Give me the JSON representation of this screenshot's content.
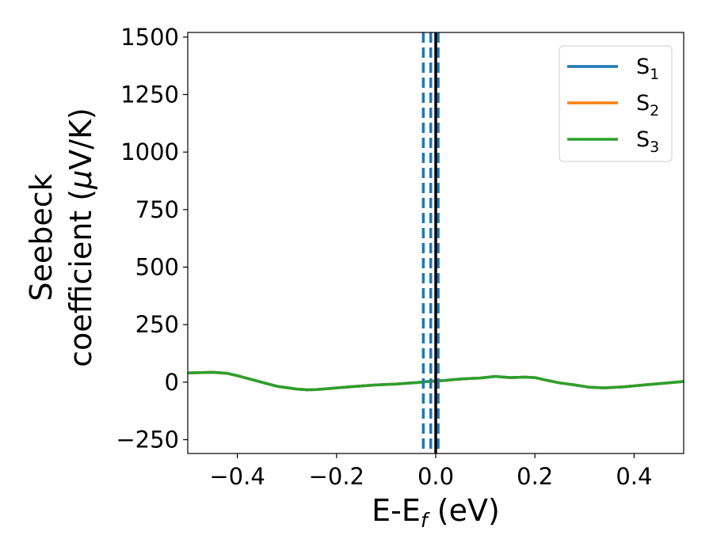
{
  "chart_data": {
    "type": "line",
    "xlabel": {
      "base": "E-E",
      "sub": "f",
      "unit": " (eV)"
    },
    "ylabel": {
      "line1": "Seebeck",
      "line2_prefix": "coefficient  (",
      "mu": "μ",
      "line2_suffix": "V/K)"
    },
    "xlim": [
      -0.5,
      0.5
    ],
    "ylim": [
      -310,
      1520
    ],
    "xticks": [
      -0.4,
      -0.2,
      0.0,
      0.2,
      0.4
    ],
    "xtick_labels": [
      "−0.4",
      "−0.2",
      "0.0",
      "0.2",
      "0.4"
    ],
    "yticks": [
      -250,
      0,
      250,
      500,
      750,
      1000,
      1250,
      1500
    ],
    "ytick_labels": [
      "−250",
      "0",
      "250",
      "500",
      "750",
      "1000",
      "1250",
      "1500"
    ],
    "grid": false,
    "legend_position": "top-right",
    "x": [
      -0.5,
      -0.47,
      -0.45,
      -0.42,
      -0.4,
      -0.36,
      -0.32,
      -0.28,
      -0.26,
      -0.24,
      -0.2,
      -0.16,
      -0.12,
      -0.08,
      -0.04,
      -0.02,
      0.0,
      0.02,
      0.04,
      0.06,
      0.09,
      0.12,
      0.15,
      0.18,
      0.2,
      0.22,
      0.25,
      0.28,
      0.31,
      0.34,
      0.38,
      0.42,
      0.46,
      0.5
    ],
    "series": [
      {
        "name": "S",
        "sub": "1",
        "color": "#1f77b4",
        "values": [
          40,
          42,
          43,
          38,
          28,
          5,
          -18,
          -30,
          -33,
          -32,
          -25,
          -18,
          -12,
          -8,
          -2,
          2,
          5,
          8,
          12,
          15,
          18,
          25,
          20,
          22,
          20,
          10,
          -3,
          -12,
          -22,
          -25,
          -20,
          -12,
          -5,
          3
        ]
      },
      {
        "name": "S",
        "sub": "2",
        "color": "#ff7f0e",
        "values": [
          40,
          42,
          43,
          38,
          28,
          5,
          -18,
          -30,
          -33,
          -32,
          -25,
          -18,
          -12,
          -8,
          -2,
          2,
          5,
          8,
          12,
          15,
          18,
          25,
          20,
          22,
          20,
          10,
          -3,
          -12,
          -22,
          -25,
          -20,
          -12,
          -5,
          3
        ]
      },
      {
        "name": "S",
        "sub": "3",
        "color": "#2ca02c",
        "values": [
          40,
          42,
          43,
          38,
          28,
          5,
          -18,
          -30,
          -33,
          -32,
          -25,
          -18,
          -12,
          -8,
          -2,
          2,
          5,
          8,
          12,
          15,
          18,
          25,
          20,
          22,
          20,
          10,
          -3,
          -12,
          -22,
          -25,
          -20,
          -12,
          -5,
          3
        ]
      }
    ],
    "vlines_dashed": {
      "color": "#1f77b4",
      "x": [
        -0.025,
        -0.01,
        0.005
      ]
    },
    "vline_solid": {
      "color": "#000000",
      "x": 0.0
    }
  }
}
